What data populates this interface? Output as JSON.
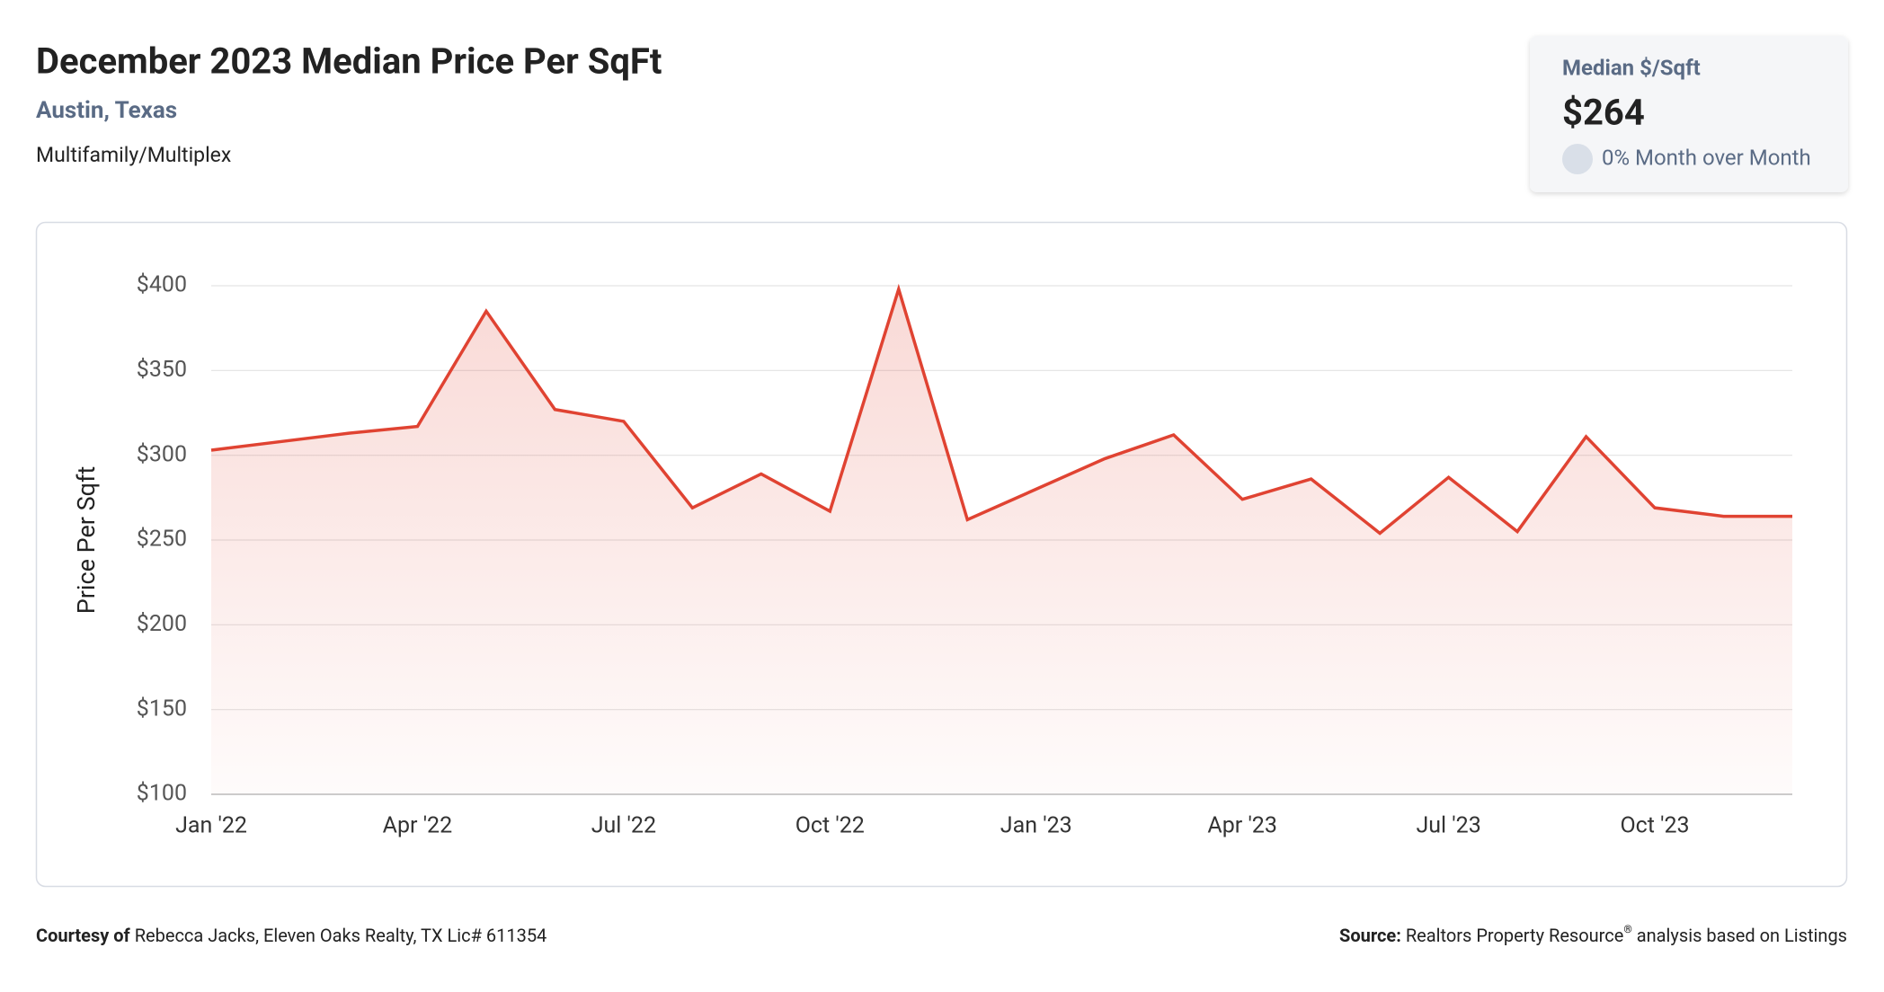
{
  "header": {
    "title": "December 2023 Median Price Per SqFt",
    "subtitle": "Austin, Texas",
    "property_type": "Multifamily/Multiplex"
  },
  "kpi": {
    "label": "Median $/Sqft",
    "value": "$264",
    "change": "0% Month over Month"
  },
  "chart_data": {
    "type": "area",
    "y_label": "Price Per Sqft",
    "categories": [
      "Jan '22",
      null,
      null,
      "Apr '22",
      null,
      null,
      "Jul '22",
      null,
      null,
      "Oct '22",
      null,
      null,
      "Jan '23",
      null,
      null,
      "Apr '23",
      null,
      null,
      "Jul '23",
      null,
      null,
      "Oct '23",
      null,
      null
    ],
    "series": [
      {
        "name": "Median Price Per SqFt",
        "color": "#e04332",
        "values": [
          303,
          308,
          313,
          317,
          385,
          327,
          320,
          269,
          289,
          267,
          398,
          262,
          280,
          298,
          312,
          274,
          286,
          254,
          287,
          255,
          311,
          269,
          264,
          264
        ]
      }
    ],
    "ylim": [
      100,
      400
    ],
    "yticks": [
      {
        "value": 100,
        "label": "$100"
      },
      {
        "value": 150,
        "label": "$150"
      },
      {
        "value": 200,
        "label": "$200"
      },
      {
        "value": 250,
        "label": "$250"
      },
      {
        "value": 300,
        "label": "$300"
      },
      {
        "value": 350,
        "label": "$350"
      },
      {
        "value": 400,
        "label": "$400"
      }
    ],
    "grid": true
  },
  "footer": {
    "courtesy_label": "Courtesy of",
    "courtesy_text": "Rebecca Jacks, Eleven Oaks Realty, TX Lic# 611354",
    "source_label": "Source:",
    "source_text": "Realtors Property Resource",
    "source_mark": "®",
    "source_suffix": "analysis based on Listings"
  }
}
